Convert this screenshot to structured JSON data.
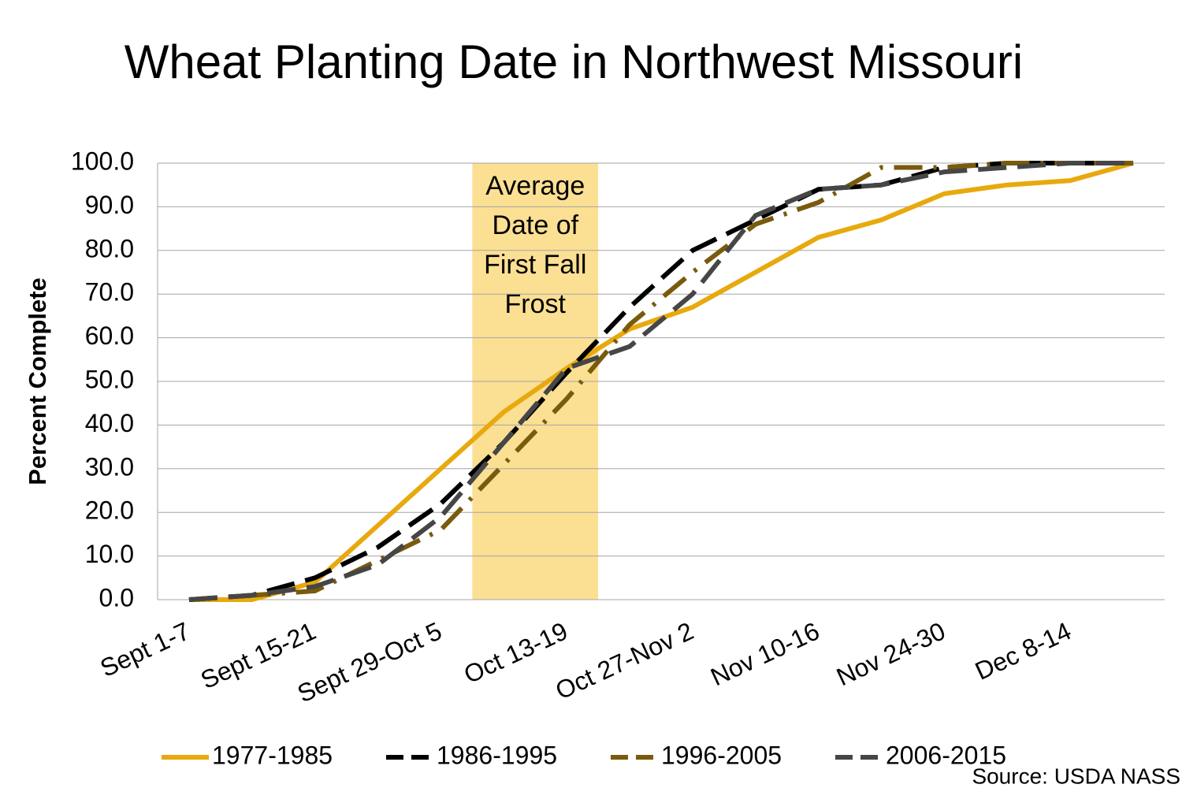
{
  "chart_data": {
    "type": "line",
    "title": "Wheat Planting Date in Northwest Missouri",
    "y_label": "Percent Complete",
    "annotation": "Average Date of First Fall Frost",
    "source": "Source: USDA NASS",
    "categories": [
      "Sept 1-7",
      null,
      "Sept 15-21",
      null,
      "Sept 29-Oct 5",
      null,
      "Oct 13-19",
      null,
      "Oct 27-Nov 2",
      null,
      "Nov 10-16",
      null,
      "Nov 24-30",
      null,
      "Dec 8-14",
      null
    ],
    "series": [
      {
        "name": "1977-1985",
        "color": "#e8a90e",
        "dash": "solid",
        "values": [
          0,
          0,
          4,
          17,
          30,
          43,
          53,
          62,
          67,
          75,
          83,
          87,
          93,
          95,
          96,
          100
        ]
      },
      {
        "name": "1986-1995",
        "color": "#000000",
        "dash": "dashed",
        "values": [
          0,
          1,
          5,
          12,
          22,
          36,
          52,
          67,
          80,
          87,
          94,
          95,
          99,
          100,
          100,
          100
        ]
      },
      {
        "name": "1996-2005",
        "color": "#7a5a0c",
        "dash": "dashdot",
        "values": [
          0,
          1,
          2,
          9,
          16,
          31,
          46,
          63,
          75,
          86,
          91,
          99,
          99,
          100,
          100,
          100
        ]
      },
      {
        "name": "2006-2015",
        "color": "#464646",
        "dash": "dashed",
        "values": [
          0,
          1,
          3,
          8,
          19,
          36,
          53,
          58,
          70,
          88,
          94,
          95,
          98,
          99,
          100,
          100
        ]
      }
    ],
    "ylim": [
      0,
      100
    ],
    "yticks": [
      {
        "value": 0,
        "label": "0.0"
      },
      {
        "value": 10,
        "label": "10.0"
      },
      {
        "value": 20,
        "label": "20.0"
      },
      {
        "value": 30,
        "label": "30.0"
      },
      {
        "value": 40,
        "label": "40.0"
      },
      {
        "value": 50,
        "label": "50.0"
      },
      {
        "value": 60,
        "label": "60.0"
      },
      {
        "value": 70,
        "label": "70.0"
      },
      {
        "value": 80,
        "label": "80.0"
      },
      {
        "value": 90,
        "label": "90.0"
      },
      {
        "value": 100,
        "label": "100.0"
      }
    ],
    "grid": true,
    "legend": "bottom"
  }
}
